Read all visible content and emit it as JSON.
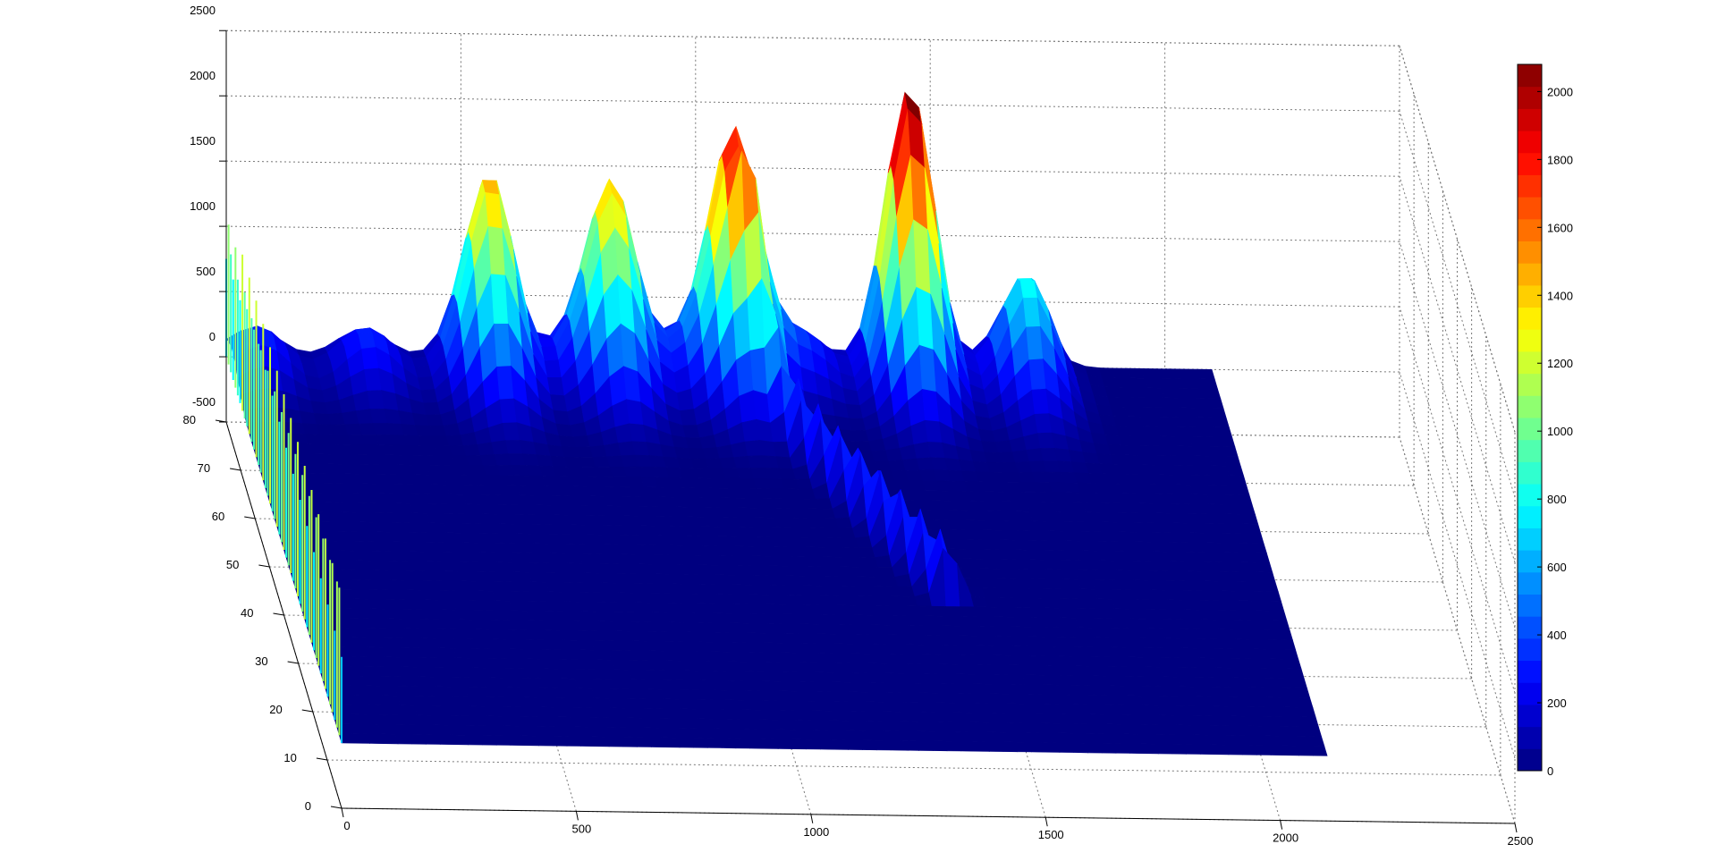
{
  "chart_data": {
    "type": "surface",
    "title": "",
    "xlabel": "",
    "ylabel": "",
    "zlabel": "",
    "grid": true,
    "x_ticks": [
      "0",
      "500",
      "1000",
      "1500",
      "2000",
      "2500"
    ],
    "y_ticks": [
      "0",
      "10",
      "20",
      "30",
      "40",
      "50",
      "60",
      "70",
      "80"
    ],
    "z_ticks": [
      "-500",
      "0",
      "500",
      "1000",
      "1500",
      "2000",
      "2500"
    ],
    "xlim": [
      0,
      2500
    ],
    "ylim": [
      0,
      80
    ],
    "zlim": [
      -500,
      2500
    ],
    "colormap": "jet",
    "colorbar": {
      "ticks": [
        "0",
        "200",
        "400",
        "600",
        "800",
        "1000",
        "1200",
        "1400",
        "1600",
        "1800",
        "2000"
      ],
      "range": [
        0,
        2080
      ],
      "placement": "right"
    },
    "surface": {
      "x_extent": [
        0,
        2100
      ],
      "y_extent": [
        0,
        80
      ],
      "base_value": 0,
      "left_edge_peak": 1200,
      "ridge_peaks": [
        {
          "x": 560,
          "y": 78,
          "z": 1250
        },
        {
          "x": 820,
          "y": 78,
          "z": 1300
        },
        {
          "x": 1080,
          "y": 78,
          "z": 1800
        },
        {
          "x": 1450,
          "y": 78,
          "z": 1900
        },
        {
          "x": 1700,
          "y": 76,
          "z": 500
        }
      ],
      "diagonal_spike_value": 900
    },
    "colors": {
      "jet": [
        "#00008f",
        "#0000ff",
        "#00ffff",
        "#ffff00",
        "#ff0000",
        "#800000"
      ],
      "grid_line": "#777777",
      "axis_line": "#000000"
    }
  }
}
